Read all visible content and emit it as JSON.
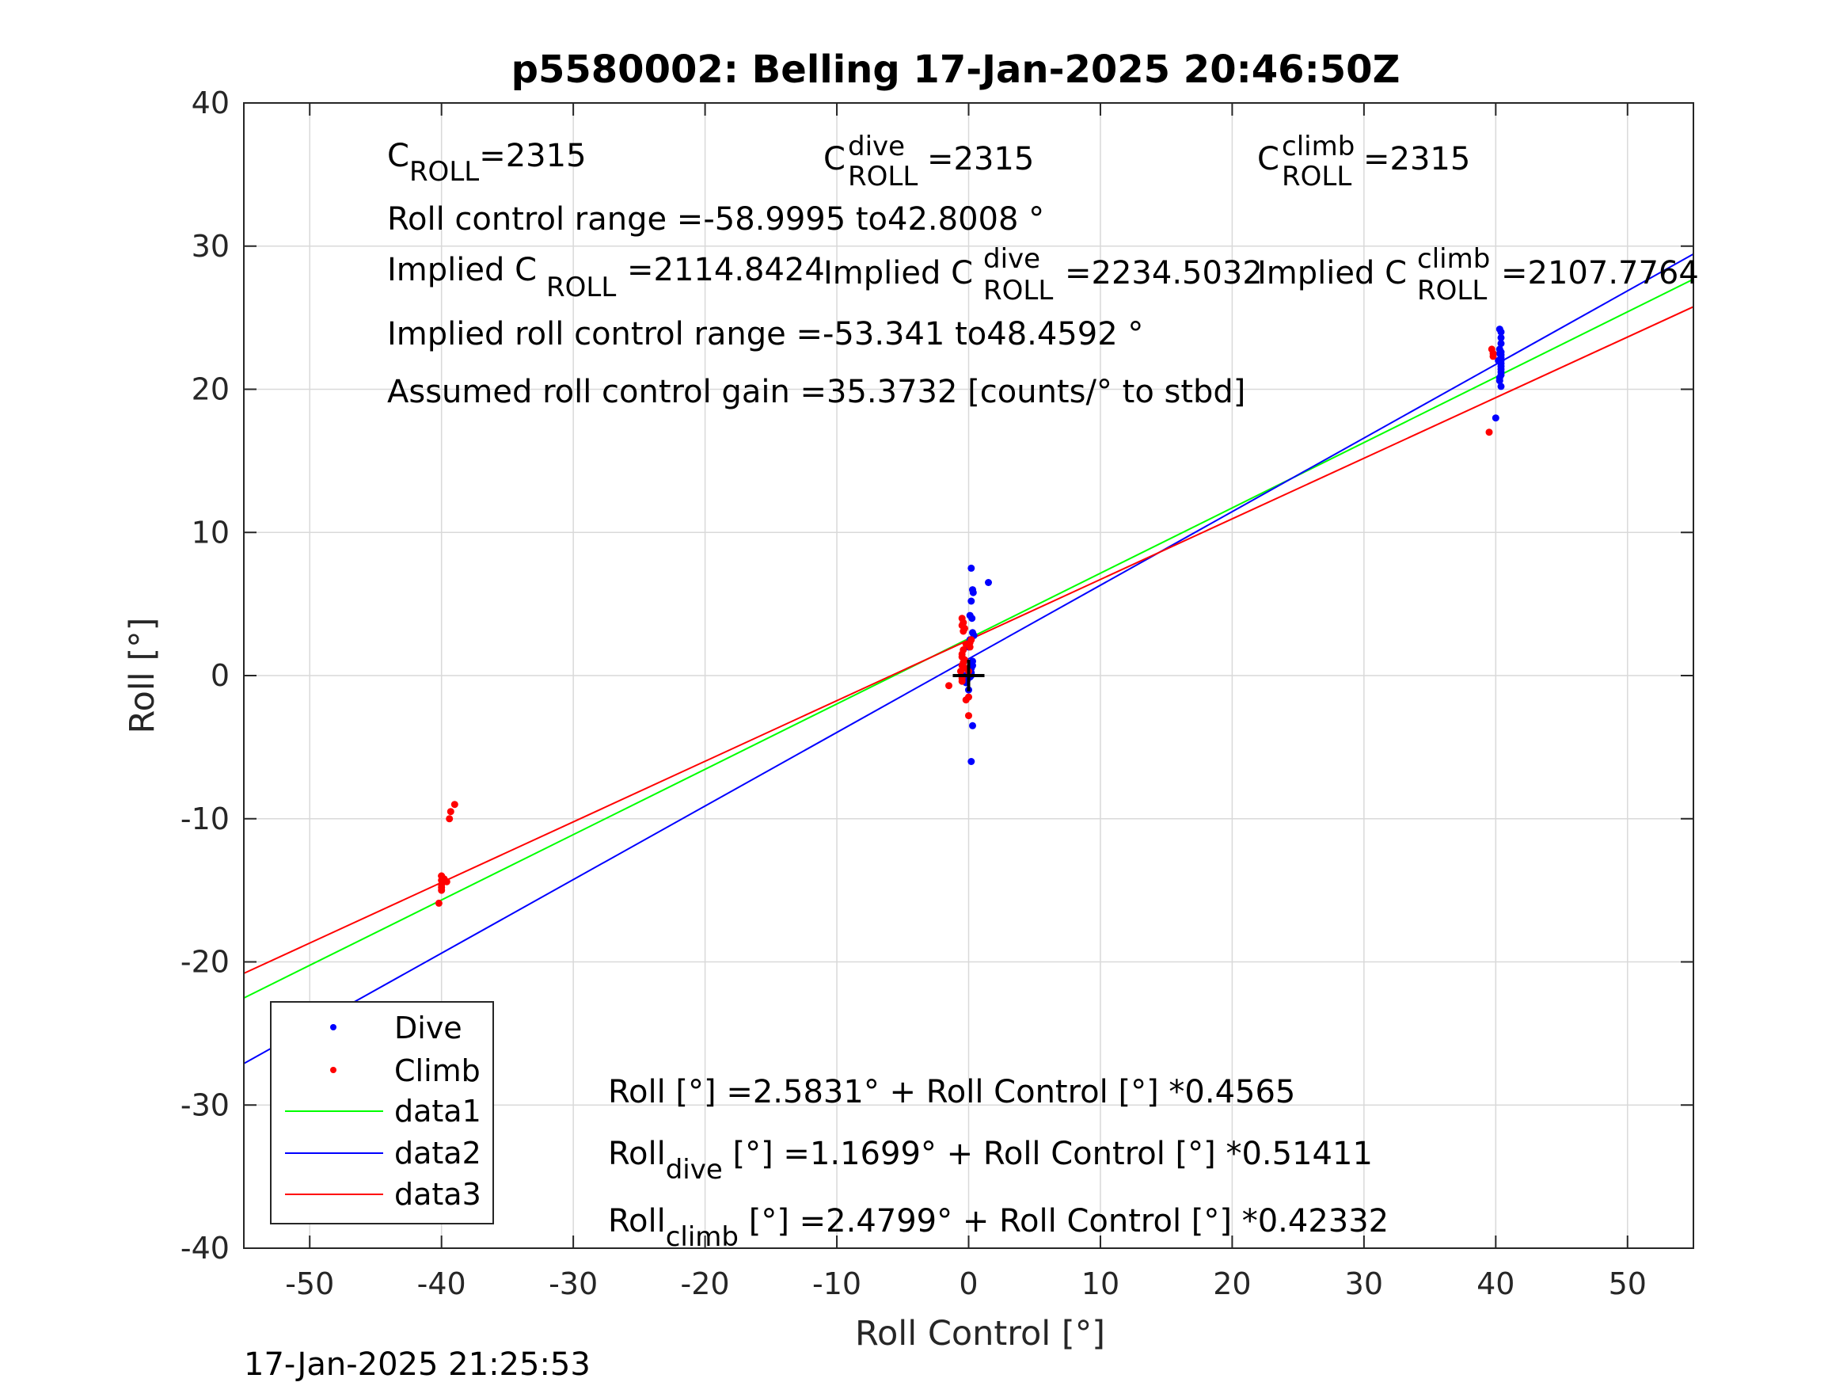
{
  "title": "p5580002: Belling 17-Jan-2025 20:46:50Z",
  "timestamp": "17-Jan-2025 21:25:53",
  "annotations": {
    "c_roll": {
      "base": "C",
      "sub": "ROLL",
      "sup": "",
      "value": "=2315"
    },
    "c_roll_dive": {
      "base": "C",
      "sub": "ROLL",
      "sup": "dive",
      "value": "=2315"
    },
    "c_roll_climb": {
      "base": "C",
      "sub": "ROLL",
      "sup": "climb",
      "value": "=2315"
    },
    "roll_control_range": "Roll control range =-58.9995 to42.8008 °",
    "implied_c_roll": {
      "base": "Implied C",
      "sub": "ROLL",
      "sup": "",
      "value": "=2114.8424"
    },
    "implied_c_roll_dive": {
      "base": "Implied C",
      "sub": "ROLL",
      "sup": "dive",
      "value": "=2234.5032"
    },
    "implied_c_roll_climb": {
      "base": "Implied C",
      "sub": "ROLL",
      "sup": "climb",
      "value": "=2107.7764"
    },
    "implied_roll_control_range": "Implied roll control range =-53.341 to48.4592 °",
    "assumed_gain": "Assumed roll control gain =35.3732 [counts/° to stbd]",
    "fit_all": {
      "base": "Roll",
      "sub": "",
      "value": " [°] =2.5831° + Roll Control [°] *0.4565"
    },
    "fit_dive": {
      "base": "Roll",
      "sub": "dive",
      "value": " [°] =1.1699° + Roll Control [°] *0.51411"
    },
    "fit_climb": {
      "base": "Roll",
      "sub": "climb",
      "value": " [°] =2.4799° + Roll Control [°] *0.42332"
    }
  },
  "chart_data": {
    "type": "scatter",
    "title": "p5580002: Belling 17-Jan-2025 20:46:50Z",
    "xlabel": "Roll Control [°]",
    "ylabel": "Roll [°]",
    "xlim": [
      -55,
      55
    ],
    "ylim": [
      -40,
      40
    ],
    "xticks": [
      -50,
      -40,
      -30,
      -20,
      -10,
      0,
      10,
      20,
      30,
      40,
      50
    ],
    "yticks": [
      -40,
      -30,
      -20,
      -10,
      0,
      10,
      20,
      30,
      40
    ],
    "grid": true,
    "legend_position": "bottom-left",
    "colors": {
      "dive": "#0000ff",
      "climb": "#ff0000",
      "data1": "#00ff00",
      "data2": "#0000ff",
      "data3": "#ff0000",
      "origin": "#000000"
    },
    "series": [
      {
        "name": "Dive",
        "kind": "points",
        "x": [
          0.2,
          0.3,
          0.35,
          0.2,
          0.1,
          0.25,
          0.3,
          0.1,
          0.0,
          1.5,
          0.4,
          0.3,
          0.2,
          0.2,
          0.1,
          -0.1,
          -0.2,
          -0.3,
          0.0,
          0.3,
          0.3,
          0.2,
          0.2,
          40.3,
          40.4,
          40.4,
          40.4,
          40.3,
          40.4,
          40.4,
          40.4,
          40.4,
          40.4,
          40.4,
          40.4,
          40.4,
          40.4,
          40.3,
          40.3,
          40.4,
          40.3,
          40.2,
          40.0
        ],
        "y": [
          7.5,
          6.0,
          5.8,
          5.2,
          4.2,
          4.0,
          3.0,
          2.5,
          2.0,
          6.5,
          2.8,
          1.0,
          0.5,
          0.2,
          -0.1,
          -0.3,
          -0.5,
          0.0,
          -1.0,
          0.7,
          -3.5,
          -6.0,
          0.0,
          24.2,
          24.0,
          23.6,
          23.2,
          22.8,
          22.6,
          22.4,
          22.2,
          22.0,
          21.8,
          21.6,
          21.4,
          21.2,
          21.0,
          20.8,
          20.6,
          20.2,
          22.5,
          22.0,
          18.0
        ]
      },
      {
        "name": "Climb",
        "kind": "points",
        "x": [
          -40.0,
          -40.0,
          -40.0,
          -40.0,
          -39.8,
          -40.0,
          -40.0,
          -39.6,
          -39.4,
          -39.0,
          -39.3,
          -40.2,
          -0.5,
          -0.4,
          -0.5,
          -0.3,
          -0.4,
          -0.5,
          -0.5,
          -0.3,
          -0.4,
          -0.5,
          -0.2,
          0.0,
          0.1,
          -0.2,
          -0.4,
          -1.5,
          -0.5,
          -0.5,
          0.0,
          -0.2,
          0.0,
          0.2,
          0.1,
          -0.6,
          39.7,
          39.8,
          39.8,
          39.5
        ],
        "y": [
          -14.0,
          -14.3,
          -14.6,
          -14.8,
          -14.2,
          -14.0,
          -15.0,
          -14.4,
          -10.0,
          -9.0,
          -9.5,
          -15.9,
          4.0,
          3.7,
          3.5,
          3.3,
          3.1,
          1.5,
          1.3,
          1.1,
          0.9,
          0.7,
          0.5,
          0.3,
          2.0,
          2.2,
          1.8,
          -0.7,
          -0.2,
          -0.4,
          -1.5,
          -1.7,
          -2.8,
          2.5,
          2.3,
          0.3,
          22.8,
          22.5,
          22.3,
          17.0
        ]
      },
      {
        "name": "data1",
        "kind": "line",
        "x": [
          -55,
          55
        ],
        "y": [
          -22.5246,
          27.6906
        ]
      },
      {
        "name": "data2",
        "kind": "line",
        "x": [
          -55,
          55
        ],
        "y": [
          -27.1047,
          29.4445
        ]
      },
      {
        "name": "data3",
        "kind": "line",
        "x": [
          -55,
          55
        ],
        "y": [
          -20.8027,
          25.7625
        ]
      }
    ],
    "origin_marker": {
      "x": 0,
      "y": 0
    }
  }
}
